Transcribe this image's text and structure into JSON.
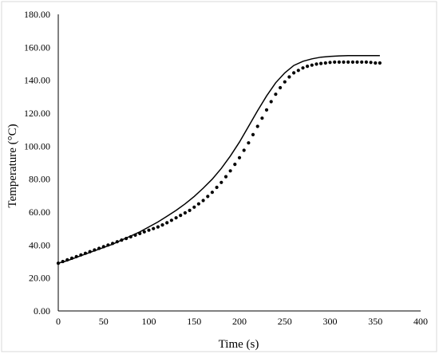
{
  "chart_data": {
    "type": "line",
    "title": "",
    "xlabel": "Time (s)",
    "ylabel": "Temperature (°C)",
    "xlim": [
      0,
      400
    ],
    "ylim": [
      0,
      180
    ],
    "x_ticks": [
      "0",
      "50",
      "100",
      "150",
      "200",
      "250",
      "300",
      "350",
      "400"
    ],
    "y_ticks": [
      "0.00",
      "20.00",
      "40.00",
      "60.00",
      "80.00",
      "100.00",
      "120.00",
      "140.00",
      "160.00",
      "180.00"
    ],
    "grid": false,
    "legend": "none",
    "series": [
      {
        "style": "solid",
        "color": "#000000",
        "x": [
          0,
          10,
          20,
          30,
          40,
          50,
          60,
          70,
          80,
          90,
          100,
          110,
          120,
          130,
          140,
          150,
          160,
          170,
          180,
          190,
          200,
          210,
          220,
          230,
          240,
          250,
          260,
          270,
          280,
          290,
          300,
          310,
          320,
          330,
          340,
          350,
          355
        ],
        "y": [
          29,
          30.5,
          32.5,
          34.5,
          36.5,
          38.5,
          40.5,
          43,
          45.5,
          48,
          51,
          54,
          57.5,
          61,
          65,
          69.5,
          74.5,
          80,
          86.5,
          94,
          102.5,
          112,
          121.5,
          130.5,
          138.5,
          144.5,
          149,
          151.5,
          153,
          154,
          154.5,
          154.8,
          155,
          155,
          155,
          155,
          155
        ]
      },
      {
        "style": "dotted",
        "color": "#000000",
        "x": [
          0,
          5,
          10,
          15,
          20,
          25,
          30,
          35,
          40,
          45,
          50,
          55,
          60,
          65,
          70,
          75,
          80,
          85,
          90,
          95,
          100,
          105,
          110,
          115,
          120,
          125,
          130,
          135,
          140,
          145,
          150,
          155,
          160,
          165,
          170,
          175,
          180,
          185,
          190,
          195,
          200,
          205,
          210,
          215,
          220,
          225,
          230,
          235,
          240,
          245,
          250,
          255,
          260,
          265,
          270,
          275,
          280,
          285,
          290,
          295,
          300,
          305,
          310,
          315,
          320,
          325,
          330,
          335,
          340,
          345,
          350,
          355
        ],
        "y": [
          29,
          30,
          31,
          32,
          33,
          34,
          35,
          36,
          37,
          38,
          39,
          40,
          41,
          42,
          43,
          44,
          45,
          46,
          47,
          48,
          49,
          50,
          51,
          52.2,
          53.5,
          55,
          56.5,
          58,
          59.5,
          61,
          63,
          65,
          67,
          69.5,
          72,
          75,
          78,
          81.5,
          85,
          89,
          93,
          97.5,
          102,
          107,
          112,
          117,
          122,
          127,
          131.5,
          135.5,
          139,
          142,
          144.5,
          146,
          147.5,
          148.5,
          149.2,
          149.8,
          150.2,
          150.5,
          150.8,
          151,
          151,
          151,
          151,
          151,
          151,
          151,
          151,
          150.8,
          150.5,
          150.5
        ]
      }
    ]
  }
}
